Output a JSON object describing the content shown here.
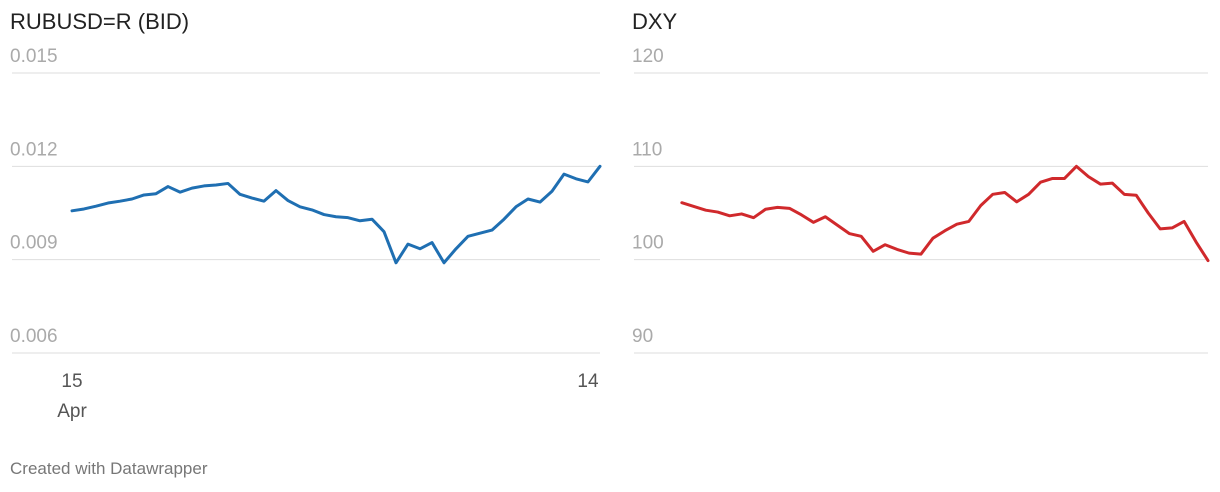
{
  "chart_data": [
    {
      "type": "line",
      "title": "RUBUSD=R (BID)",
      "x": [
        0,
        1,
        2,
        3,
        4,
        5,
        6,
        7,
        8,
        9,
        10,
        11,
        12,
        13,
        14,
        15,
        16,
        17,
        18,
        19,
        20,
        21,
        22,
        23,
        24,
        25,
        26,
        27,
        28,
        29,
        30,
        31,
        32,
        33,
        34,
        35,
        36,
        37,
        38,
        39,
        40,
        41,
        42,
        43,
        44
      ],
      "series": [
        {
          "name": "RUBUSD=R (BID)",
          "color": "#1f6fb2",
          "values": [
            0.01057,
            0.01063,
            0.01072,
            0.01082,
            0.01088,
            0.01095,
            0.01108,
            0.01112,
            0.01135,
            0.01117,
            0.0113,
            0.01137,
            0.0114,
            0.01145,
            0.0111,
            0.01098,
            0.01088,
            0.01122,
            0.0109,
            0.0107,
            0.0106,
            0.01045,
            0.01038,
            0.01035,
            0.01025,
            0.0103,
            0.0099,
            0.0089,
            0.0095,
            0.00935,
            0.00955,
            0.0089,
            0.00935,
            0.00975,
            0.00985,
            0.00995,
            0.0103,
            0.0107,
            0.01095,
            0.01085,
            0.0112,
            0.01175,
            0.0116,
            0.0115,
            0.012
          ]
        }
      ],
      "xlim": [
        -5,
        44
      ],
      "xticks": [
        {
          "value": 0,
          "label": "15",
          "month": "Apr"
        },
        {
          "value": 43,
          "label": "14"
        }
      ],
      "ylim": [
        0.006,
        0.015
      ],
      "yticks": [
        0.006,
        0.009,
        0.012,
        0.015
      ],
      "grid": true
    },
    {
      "type": "line",
      "title": "DXY",
      "x": [
        0,
        1,
        2,
        3,
        4,
        5,
        6,
        7,
        8,
        9,
        10,
        11,
        12,
        13,
        14,
        15,
        16,
        17,
        18,
        19,
        20,
        21,
        22,
        23,
        24,
        25,
        26,
        27,
        28,
        29,
        30,
        31,
        32,
        33,
        34,
        35,
        36,
        37,
        38,
        39,
        40,
        41,
        42,
        43,
        44
      ],
      "series": [
        {
          "name": "DXY",
          "color": "#d0292c",
          "values": [
            106.1,
            105.7,
            105.3,
            105.1,
            104.7,
            104.9,
            104.5,
            105.4,
            105.6,
            105.5,
            104.8,
            104.0,
            104.6,
            103.7,
            102.8,
            102.5,
            100.9,
            101.6,
            101.1,
            100.7,
            100.6,
            102.3,
            103.1,
            103.8,
            104.1,
            105.8,
            107.0,
            107.2,
            106.2,
            107.0,
            108.3,
            108.7,
            108.7,
            110.0,
            108.9,
            108.1,
            108.2,
            107.0,
            106.9,
            105.0,
            103.3,
            103.4,
            104.1,
            101.9,
            99.9
          ]
        }
      ],
      "xlim": [
        -4,
        44
      ],
      "ylim": [
        90,
        120
      ],
      "yticks": [
        90,
        100,
        110,
        120
      ],
      "grid": true
    }
  ],
  "credit": "Created with Datawrapper"
}
